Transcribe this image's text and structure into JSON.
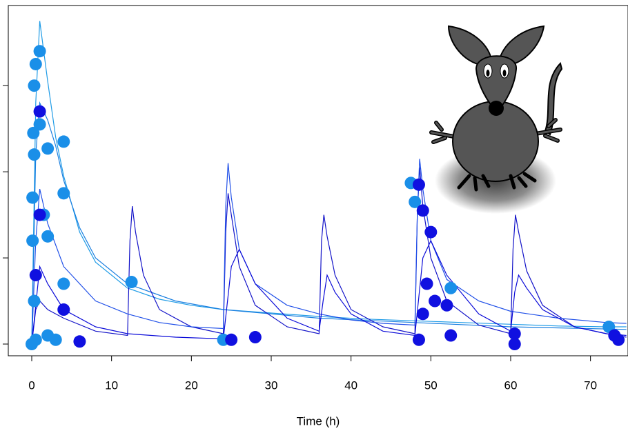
{
  "chart_data": {
    "type": "line",
    "xlabel": "Time (h)",
    "xlim": [
      -2.94,
      74.7
    ],
    "ylim": [
      -0.136,
      3.93
    ],
    "xticks": [
      0,
      10,
      20,
      30,
      40,
      50,
      60,
      70
    ],
    "yticks": [
      0,
      1,
      2,
      3
    ],
    "series": [
      {
        "type": "line",
        "color": "#1e9be6",
        "x": [
          0,
          0.5,
          1,
          2,
          3,
          4,
          6,
          8,
          12,
          16,
          20,
          24,
          30,
          36,
          42,
          48,
          54,
          60,
          66,
          72,
          74.5
        ],
        "values": [
          0,
          2.8,
          3.75,
          3.05,
          2.4,
          1.95,
          1.3,
          0.95,
          0.65,
          0.52,
          0.45,
          0.4,
          0.36,
          0.32,
          0.29,
          0.27,
          0.25,
          0.23,
          0.21,
          0.2,
          0.2
        ]
      },
      {
        "type": "line",
        "color": "#1a7fe0",
        "x": [
          0,
          0.5,
          1,
          2,
          3,
          4,
          6,
          8,
          12,
          18,
          24,
          36,
          48,
          60,
          74.5
        ],
        "values": [
          0,
          2.2,
          2.8,
          2.6,
          2.3,
          1.9,
          1.35,
          1.0,
          0.7,
          0.5,
          0.4,
          0.3,
          0.25,
          0.2,
          0.17
        ]
      },
      {
        "type": "line",
        "color": "#1212c8",
        "x": [
          0,
          0.5,
          1,
          2,
          4,
          8,
          12,
          12.3,
          12.6,
          13,
          14,
          16,
          20,
          24,
          24.3,
          24.6,
          25,
          26,
          28,
          32,
          36,
          36.3,
          36.6,
          37,
          38,
          40,
          44,
          48,
          48.3,
          48.6,
          49,
          50,
          52,
          56,
          60,
          60.3,
          60.6,
          61,
          62,
          64,
          68,
          72,
          74.5
        ],
        "values": [
          0,
          0.4,
          0.5,
          0.4,
          0.3,
          0.15,
          0.1,
          1.2,
          1.6,
          1.3,
          0.8,
          0.4,
          0.2,
          0.12,
          1.3,
          1.75,
          1.5,
          0.9,
          0.45,
          0.2,
          0.12,
          1.2,
          1.5,
          1.25,
          0.8,
          0.4,
          0.2,
          0.12,
          1.5,
          2.05,
          1.6,
          1.0,
          0.5,
          0.22,
          0.12,
          1.1,
          1.5,
          1.3,
          0.85,
          0.45,
          0.2,
          0.12,
          0.08
        ]
      },
      {
        "type": "line",
        "color": "#2050e8",
        "x": [
          0,
          0.5,
          1,
          2,
          4,
          8,
          12,
          16,
          20,
          24,
          24.3,
          24.6,
          25,
          26,
          28,
          32,
          36,
          40,
          44,
          48,
          48.3,
          48.6,
          49,
          50,
          52,
          56,
          60,
          66,
          72,
          74.5
        ],
        "values": [
          0,
          1.2,
          1.8,
          1.4,
          0.9,
          0.5,
          0.35,
          0.25,
          0.2,
          0.18,
          1.6,
          2.1,
          1.7,
          1.1,
          0.7,
          0.45,
          0.35,
          0.28,
          0.24,
          0.22,
          1.5,
          2.15,
          1.8,
          1.2,
          0.75,
          0.5,
          0.38,
          0.3,
          0.25,
          0.24
        ]
      },
      {
        "type": "line",
        "color": "#0a0ad8",
        "x": [
          0,
          1,
          2,
          4,
          8,
          12,
          18,
          24,
          25,
          26,
          28,
          32,
          36,
          36.5,
          37,
          38,
          40,
          44,
          48,
          49,
          50,
          52,
          56,
          60,
          60.5,
          61,
          62,
          64,
          68,
          72,
          74.5
        ],
        "values": [
          0,
          0.9,
          0.7,
          0.4,
          0.2,
          0.12,
          0.08,
          0.06,
          0.9,
          1.1,
          0.7,
          0.3,
          0.15,
          0.5,
          0.8,
          0.6,
          0.35,
          0.15,
          0.1,
          1.0,
          1.2,
          0.8,
          0.35,
          0.15,
          0.6,
          0.8,
          0.65,
          0.4,
          0.2,
          0.12,
          0.1
        ]
      },
      {
        "type": "scatter",
        "color": "#1a8fe8",
        "x": [
          0.5,
          1,
          0.3,
          0.2,
          0.3,
          1,
          2,
          4,
          4,
          0.1,
          1.5,
          2,
          0.1,
          4,
          0.3,
          2,
          0,
          12.5,
          24,
          47.5,
          48,
          52.5,
          72.3,
          0.5,
          3
        ],
        "values": [
          3.25,
          3.4,
          3.0,
          2.45,
          2.2,
          2.55,
          2.27,
          2.35,
          1.75,
          1.7,
          1.5,
          1.25,
          1.2,
          0.7,
          0.5,
          0.1,
          0,
          0.72,
          0.05,
          1.87,
          1.65,
          0.65,
          0.2,
          0.05,
          0.05
        ]
      },
      {
        "type": "scatter",
        "color": "#1010e0",
        "x": [
          1,
          1,
          0.5,
          4,
          6,
          25,
          28,
          48.5,
          49,
          50,
          49.5,
          50.5,
          48.5,
          52,
          52.5,
          60.5,
          60.5,
          73.5,
          73,
          49
        ],
        "values": [
          2.7,
          1.5,
          0.8,
          0.4,
          0.03,
          0.05,
          0.08,
          1.85,
          1.55,
          1.3,
          0.7,
          0.5,
          0.05,
          0.45,
          0.1,
          0.12,
          0,
          0.05,
          0.1,
          0.35
        ]
      }
    ]
  }
}
